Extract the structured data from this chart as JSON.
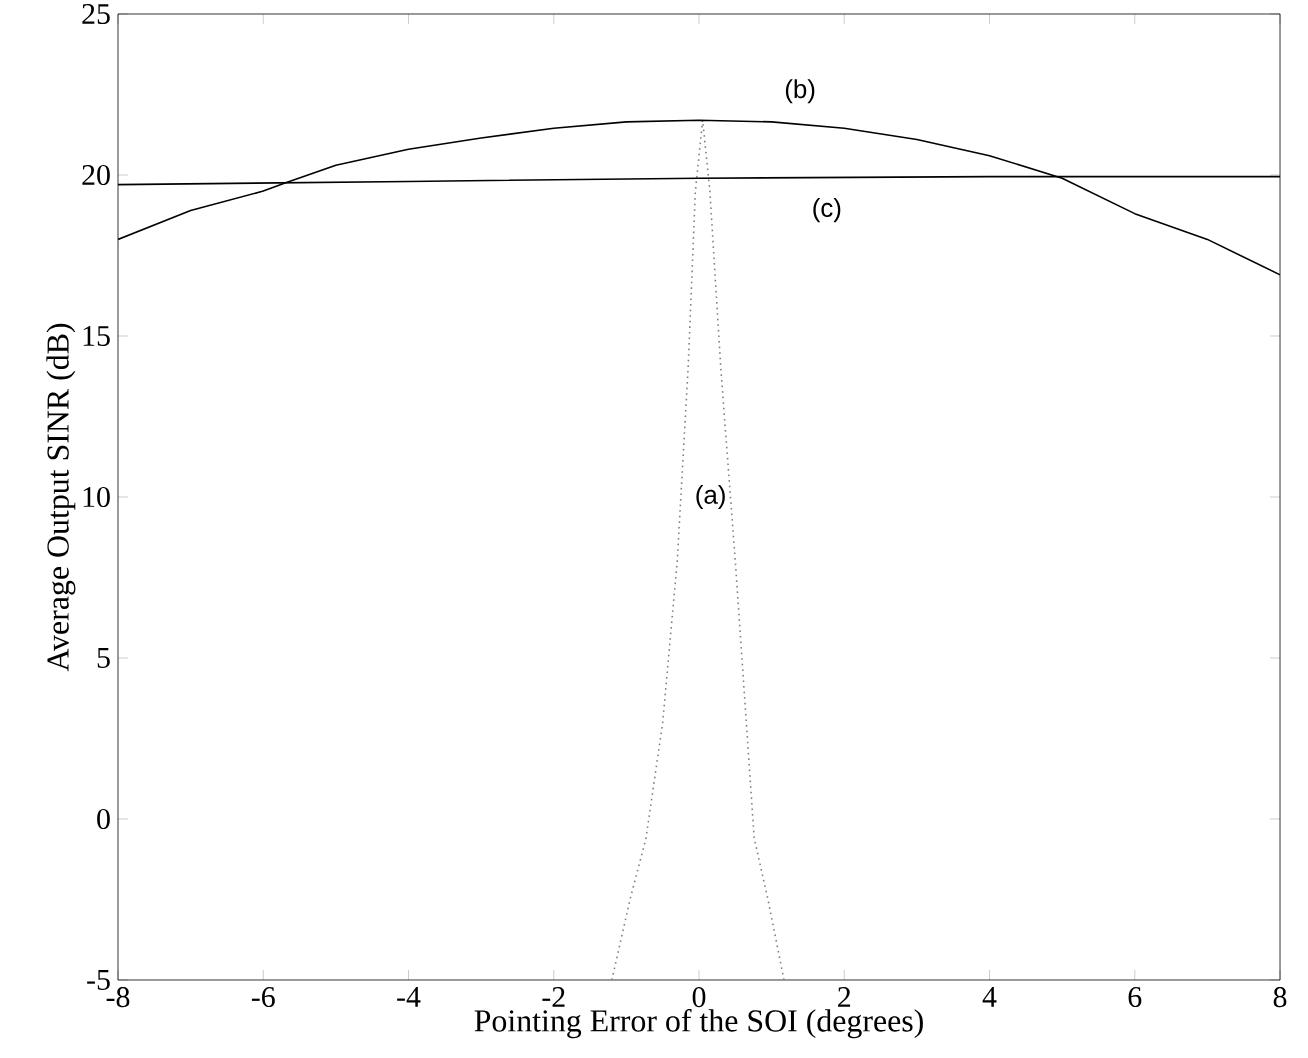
{
  "chart_data": {
    "type": "line",
    "xlabel": "Pointing Error of the SOI (degrees)",
    "ylabel": "Average Output SINR (dB)",
    "xlim": [
      -8,
      8
    ],
    "ylim": [
      -5,
      25
    ],
    "xticks": [
      -8,
      -6,
      -4,
      -2,
      0,
      2,
      4,
      6,
      8
    ],
    "yticks": [
      -5,
      0,
      5,
      10,
      15,
      20,
      25
    ],
    "grid": false,
    "series": [
      {
        "color": "#808080",
        "line_style": "dotted",
        "x": [
          -1.2,
          -0.95,
          -0.73,
          -0.5,
          -0.3,
          -0.15,
          -0.05,
          0.05,
          0.15,
          0.3,
          0.5,
          0.76,
          0.95,
          1.17
        ],
        "values": [
          -5,
          -2.5,
          -0.6,
          3,
          8,
          14,
          19.5,
          21.7,
          19.5,
          14,
          8,
          -0.6,
          -2.5,
          -5
        ]
      },
      {
        "color": "#000000",
        "line_style": "solid",
        "x": [
          -8,
          -7,
          -6,
          -5.7,
          -5,
          -4,
          -3,
          -2,
          -1,
          0,
          1,
          2,
          3,
          4,
          5,
          6,
          7,
          8
        ],
        "values": [
          18.0,
          18.9,
          19.5,
          19.75,
          20.3,
          20.8,
          21.15,
          21.45,
          21.65,
          21.7,
          21.65,
          21.45,
          21.1,
          20.6,
          19.9,
          18.8,
          18.0,
          16.9
        ]
      },
      {
        "color": "#000000",
        "line_style": "solid",
        "x": [
          -8,
          -4,
          0,
          4,
          8
        ],
        "values": [
          19.7,
          19.8,
          19.9,
          19.95,
          19.95
        ]
      }
    ],
    "annotations": [
      "(b)",
      "(c)",
      "(a)"
    ]
  }
}
